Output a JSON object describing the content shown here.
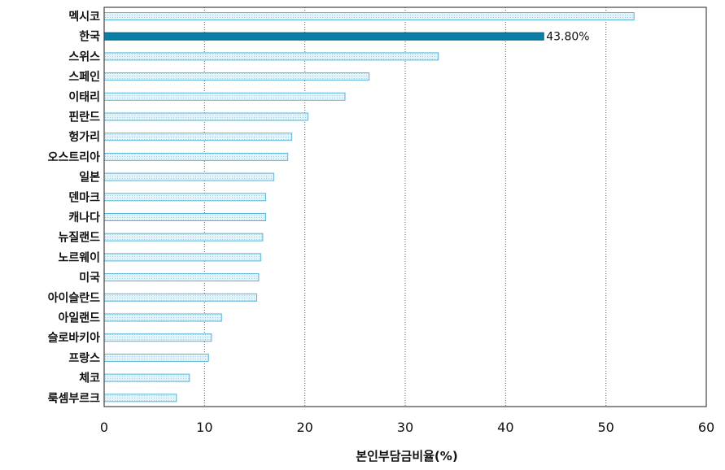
{
  "chart_data": {
    "type": "bar",
    "orientation": "horizontal",
    "categories": [
      "멕시코",
      "한국",
      "스위스",
      "스페인",
      "이태리",
      "핀란드",
      "헝가리",
      "오스트리아",
      "일본",
      "덴마크",
      "캐나다",
      "뉴질랜드",
      "노르웨이",
      "미국",
      "아이슬란드",
      "아일랜드",
      "슬로바키아",
      "프랑스",
      "체코",
      "룩셈부르크"
    ],
    "values": [
      52.8,
      43.8,
      33.3,
      26.4,
      24.0,
      20.3,
      18.7,
      18.3,
      16.9,
      16.1,
      16.1,
      15.8,
      15.6,
      15.4,
      15.2,
      11.7,
      10.7,
      10.4,
      8.5,
      7.2
    ],
    "highlight_index": 1,
    "highlight_label": "43.80%",
    "xlabel": "본인부담금비율(%)",
    "xlim": [
      0,
      60
    ],
    "xticks": [
      0,
      10,
      20,
      30,
      40,
      50,
      60
    ],
    "grid": "vertical",
    "colors": {
      "bar_fill": "#e3f5fb",
      "bar_stroke": "#5ab3d6",
      "highlight_fill": "#0a7fa8",
      "highlight_stroke": "#06597a",
      "grid": "#555555",
      "frame": "#444444"
    }
  }
}
